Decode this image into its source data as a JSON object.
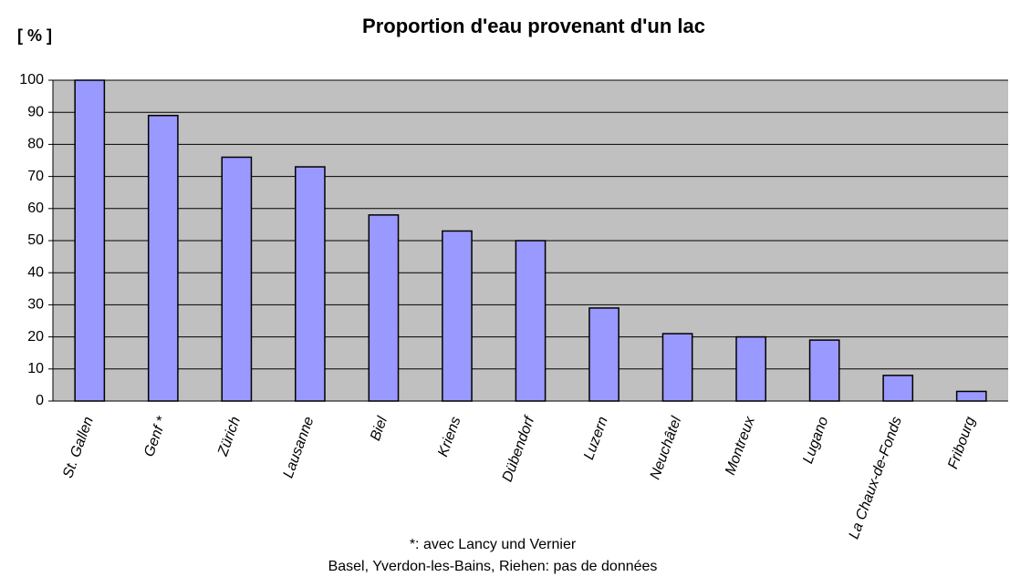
{
  "chart_data": {
    "type": "bar",
    "title": "Proportion d'eau provenant d'un lac",
    "y_label": "[ % ]",
    "categories": [
      "St. Gallen",
      "Genf *",
      "Zürich",
      "Lausanne",
      "Biel",
      "Kriens",
      "Dübendorf",
      "Luzern",
      "Neuchâtel",
      "Montreux",
      "Lugano",
      "La Chaux-de-Fonds",
      "Fribourg"
    ],
    "values": [
      100,
      89,
      76,
      73,
      58,
      53,
      50,
      29,
      21,
      20,
      19,
      8,
      3
    ],
    "color": "#9999ff",
    "ylim": [
      0,
      100
    ],
    "yticks": [
      0,
      10,
      20,
      30,
      40,
      50,
      60,
      70,
      80,
      90,
      100
    ],
    "grid": true,
    "notes": [
      "*: avec Lancy und Vernier",
      "Basel, Yverdon-les-Bains, Riehen: pas de données"
    ]
  }
}
